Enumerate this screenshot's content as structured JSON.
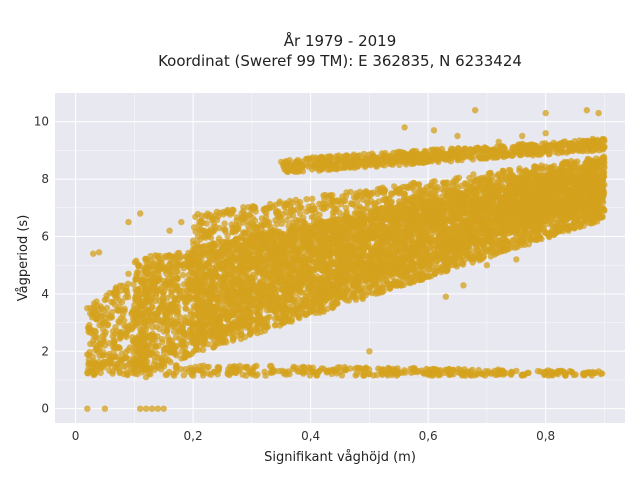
{
  "chart_data": {
    "type": "scatter",
    "title_line1": "År 1979 - 2019",
    "title_line2": "Koordinat (Sweref 99 TM): E 362835, N 6233424",
    "xlabel": "Signifikant våghöjd (m)",
    "ylabel": "Vågperiod (s)",
    "xlim": [
      -0.035,
      0.935
    ],
    "ylim": [
      -0.5,
      11
    ],
    "xticks": [
      0,
      0.2,
      0.4,
      0.6,
      0.8
    ],
    "xtick_labels": [
      "0",
      "0,2",
      "0,4",
      "0,6",
      "0,8"
    ],
    "yticks": [
      0,
      2,
      4,
      6,
      8,
      10
    ],
    "ytick_labels": [
      "0",
      "2",
      "4",
      "6",
      "8",
      "10"
    ],
    "grid": true,
    "colors": {
      "marker": "#d4a21e",
      "plot_bg": "#e8e8f0",
      "grid": "#ffffff"
    },
    "series": [
      {
        "points": [
          [
            0.02,
            0
          ],
          [
            0.05,
            0
          ],
          [
            0.11,
            0
          ],
          [
            0.12,
            0
          ],
          [
            0.13,
            0
          ],
          [
            0.14,
            0
          ],
          [
            0.15,
            0
          ],
          [
            0.02,
            1.25
          ],
          [
            0.03,
            1.6
          ],
          [
            0.02,
            3.5
          ],
          [
            0.03,
            3.3
          ],
          [
            0.03,
            5.4
          ],
          [
            0.04,
            5.45
          ],
          [
            0.09,
            6.5
          ],
          [
            0.11,
            6.8
          ],
          [
            0.16,
            6.2
          ],
          [
            0.18,
            6.5
          ],
          [
            0.09,
            4.7
          ],
          [
            0.5,
            2.0
          ],
          [
            0.35,
            8.6
          ],
          [
            0.4,
            8.7
          ],
          [
            0.46,
            8.5
          ],
          [
            0.48,
            8.8
          ],
          [
            0.56,
            9.8
          ],
          [
            0.68,
            10.4
          ],
          [
            0.8,
            10.3
          ],
          [
            0.87,
            10.4
          ],
          [
            0.89,
            10.3
          ],
          [
            0.61,
            9.7
          ],
          [
            0.65,
            9.5
          ],
          [
            0.72,
            9.3
          ],
          [
            0.76,
            9.5
          ],
          [
            0.8,
            9.6
          ],
          [
            0.84,
            9.2
          ],
          [
            0.88,
            9.4
          ],
          [
            0.9,
            9.1
          ],
          [
            0.05,
            2.2
          ],
          [
            0.07,
            1.5
          ],
          [
            0.12,
            1.1
          ],
          [
            0.2,
            1.15
          ],
          [
            0.3,
            1.3
          ],
          [
            0.63,
            3.9
          ],
          [
            0.59,
            4.5
          ],
          [
            0.66,
            4.3
          ],
          [
            0.7,
            5.0
          ],
          [
            0.75,
            5.2
          ],
          [
            0.79,
            6.4
          ],
          [
            0.85,
            6.6
          ],
          [
            0.88,
            7.4
          ],
          [
            0.9,
            7.8
          ],
          [
            0.9,
            8.4
          ],
          [
            0.87,
            8.6
          ]
        ]
      }
    ],
    "dense_bands": [
      {
        "x0": 0.02,
        "x1": 0.9,
        "lo0": 1.15,
        "lo1": 1.15,
        "hi0": 1.6,
        "hi1": 1.3,
        "n": 400
      },
      {
        "x0": 0.1,
        "x1": 0.9,
        "lo0": 1.2,
        "lo1": 6.6,
        "hi0": 5.2,
        "hi1": 8.6,
        "n": 4200
      },
      {
        "x0": 0.2,
        "x1": 0.9,
        "lo0": 2.2,
        "lo1": 7.3,
        "hi0": 6.8,
        "hi1": 8.8,
        "n": 2600
      },
      {
        "x0": 0.35,
        "x1": 0.9,
        "lo0": 8.2,
        "lo1": 9.0,
        "hi0": 8.7,
        "hi1": 9.4,
        "n": 700
      },
      {
        "x0": 0.02,
        "x1": 0.12,
        "lo0": 1.2,
        "lo1": 1.5,
        "hi0": 3.6,
        "hi1": 5.0,
        "n": 260
      }
    ]
  }
}
